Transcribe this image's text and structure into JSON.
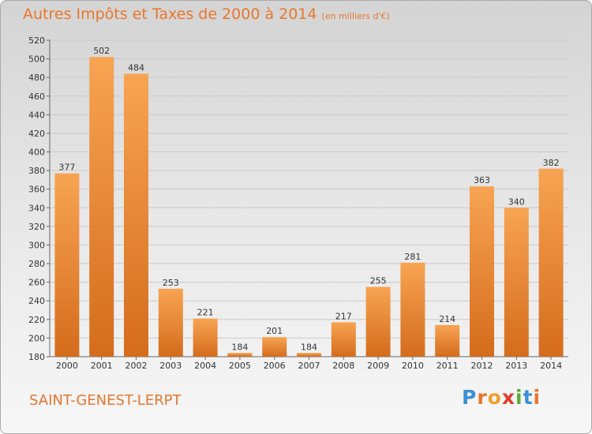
{
  "title": "Autres Impôts et Taxes de 2000 à 2014",
  "subtitle": "(en milliers d'€)",
  "commune": "SAINT-GENEST-LERPT",
  "logo": [
    "P",
    "r",
    "o",
    "x",
    "i",
    "t",
    "i"
  ],
  "chart_data": {
    "type": "bar",
    "categories": [
      "2000",
      "2001",
      "2002",
      "2003",
      "2004",
      "2005",
      "2006",
      "2007",
      "2008",
      "2009",
      "2010",
      "2011",
      "2012",
      "2013",
      "2014"
    ],
    "values": [
      377,
      502,
      484,
      253,
      221,
      184,
      201,
      184,
      217,
      255,
      281,
      214,
      363,
      340,
      382
    ],
    "ylim": [
      180,
      520
    ],
    "yticks": [
      180,
      200,
      220,
      240,
      260,
      280,
      300,
      320,
      340,
      360,
      380,
      400,
      420,
      440,
      460,
      480,
      500,
      520
    ],
    "grid": true,
    "bar_color": "#f0953f",
    "bar_color_dark": "#d06a1c"
  }
}
